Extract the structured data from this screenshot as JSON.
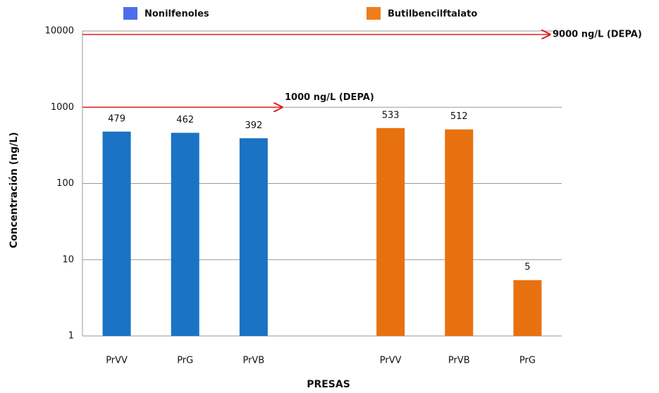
{
  "chart_data": {
    "type": "bar",
    "x_label": "PRESAS",
    "y_label": "Concentración (ng/L)",
    "categories": [
      "PrVV",
      "PrG",
      "PrVB",
      null,
      "PrVV",
      "PrVB",
      "PrG"
    ],
    "series": [
      {
        "name": "Nonilfenoles",
        "color": "#1a73c4",
        "legend_color": "#4d6ee8",
        "values": [
          479,
          462,
          392,
          null,
          null,
          null,
          null
        ],
        "value_labels": [
          "479",
          "462",
          "392",
          null,
          null,
          null,
          null
        ]
      },
      {
        "name": "Butilbencilftalato",
        "color": "#e8710f",
        "legend_color": "#f07d1a",
        "values": [
          null,
          null,
          null,
          null,
          533,
          512,
          5.4
        ],
        "value_labels": [
          null,
          null,
          null,
          null,
          "533",
          "512",
          "5"
        ]
      }
    ],
    "ylim": [
      1,
      10000
    ],
    "yticks": [
      1,
      10,
      100,
      1000,
      10000
    ],
    "log_y": true,
    "grid": true,
    "legend": "top",
    "reference_lines": [
      {
        "label": "1000 ng/L (DEPA)",
        "value": 1000,
        "color": "#e02020"
      },
      {
        "label": "9000 ng/L (DEPA)",
        "value": 9000,
        "color": "#e02020"
      }
    ]
  }
}
